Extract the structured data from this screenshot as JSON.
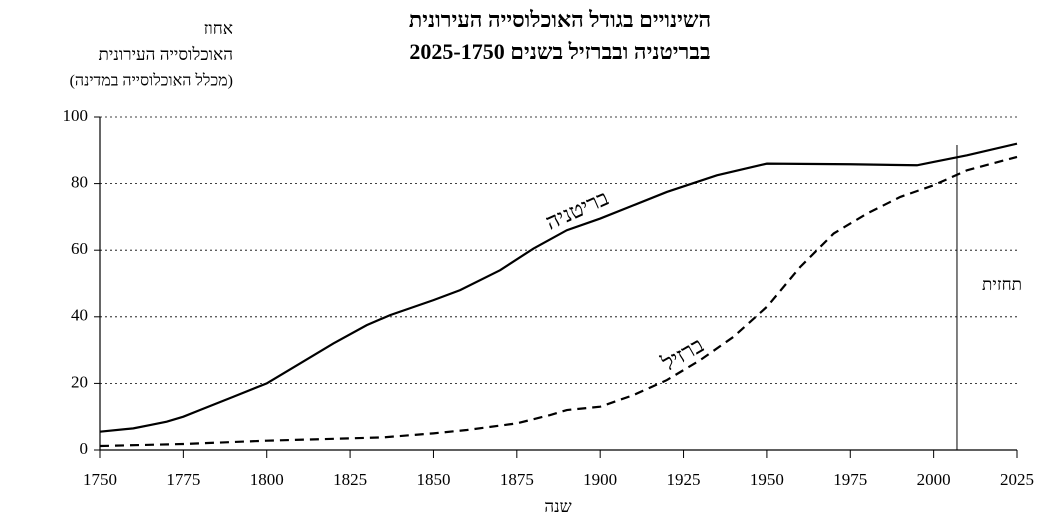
{
  "chart_data": {
    "type": "line",
    "title": [
      "השינויים בגודל האוכלוסייה העירונית",
      "בבריטניה ובברזיל בשנים 2025-1750"
    ],
    "y_label": [
      "אחוז",
      "האוכלוסייה העירונית",
      "(מכלל האוכלוסייה במדינה)"
    ],
    "x_label": "שנה",
    "series": [
      {
        "name": "בריטניה",
        "color": "#000",
        "dash": false,
        "x": [
          1750,
          1760,
          1765,
          1770,
          1775,
          1780,
          1790,
          1800,
          1810,
          1820,
          1830,
          1837,
          1850,
          1858,
          1870,
          1880,
          1890,
          1900,
          1910,
          1920,
          1935,
          1950,
          1975,
          1995,
          2000,
          2010,
          2025
        ],
        "values": [
          5.5,
          6.5,
          7.5,
          8.5,
          10,
          12,
          16,
          20,
          26,
          32,
          37.5,
          40.5,
          45,
          48,
          54,
          60.5,
          66,
          69.5,
          73.5,
          77.5,
          82.5,
          86,
          85.8,
          85.5,
          86.5,
          88.5,
          92
        ]
      },
      {
        "name": "ברזיל",
        "color": "#000",
        "dash": true,
        "x": [
          1750,
          1775,
          1800,
          1825,
          1835,
          1850,
          1860,
          1875,
          1885,
          1890,
          1900,
          1910,
          1920,
          1930,
          1940,
          1950,
          1960,
          1970,
          1980,
          1990,
          2000,
          2010,
          2025
        ],
        "values": [
          1.2,
          1.8,
          2.8,
          3.5,
          3.8,
          5,
          6,
          8,
          10.5,
          12,
          13,
          16.5,
          21,
          27,
          34,
          43,
          55,
          65,
          71,
          76,
          79.5,
          84,
          88
        ]
      }
    ],
    "forecast": {
      "x": 2007,
      "label": "תחזית"
    },
    "xlim": [
      1750,
      2025
    ],
    "xticks": [
      1750,
      1775,
      1800,
      1825,
      1850,
      1875,
      1900,
      1925,
      1950,
      1975,
      2000,
      2025
    ],
    "ylim": [
      0,
      100
    ],
    "yticks": [
      0,
      20,
      40,
      60,
      80,
      100
    ],
    "grid": true
  }
}
